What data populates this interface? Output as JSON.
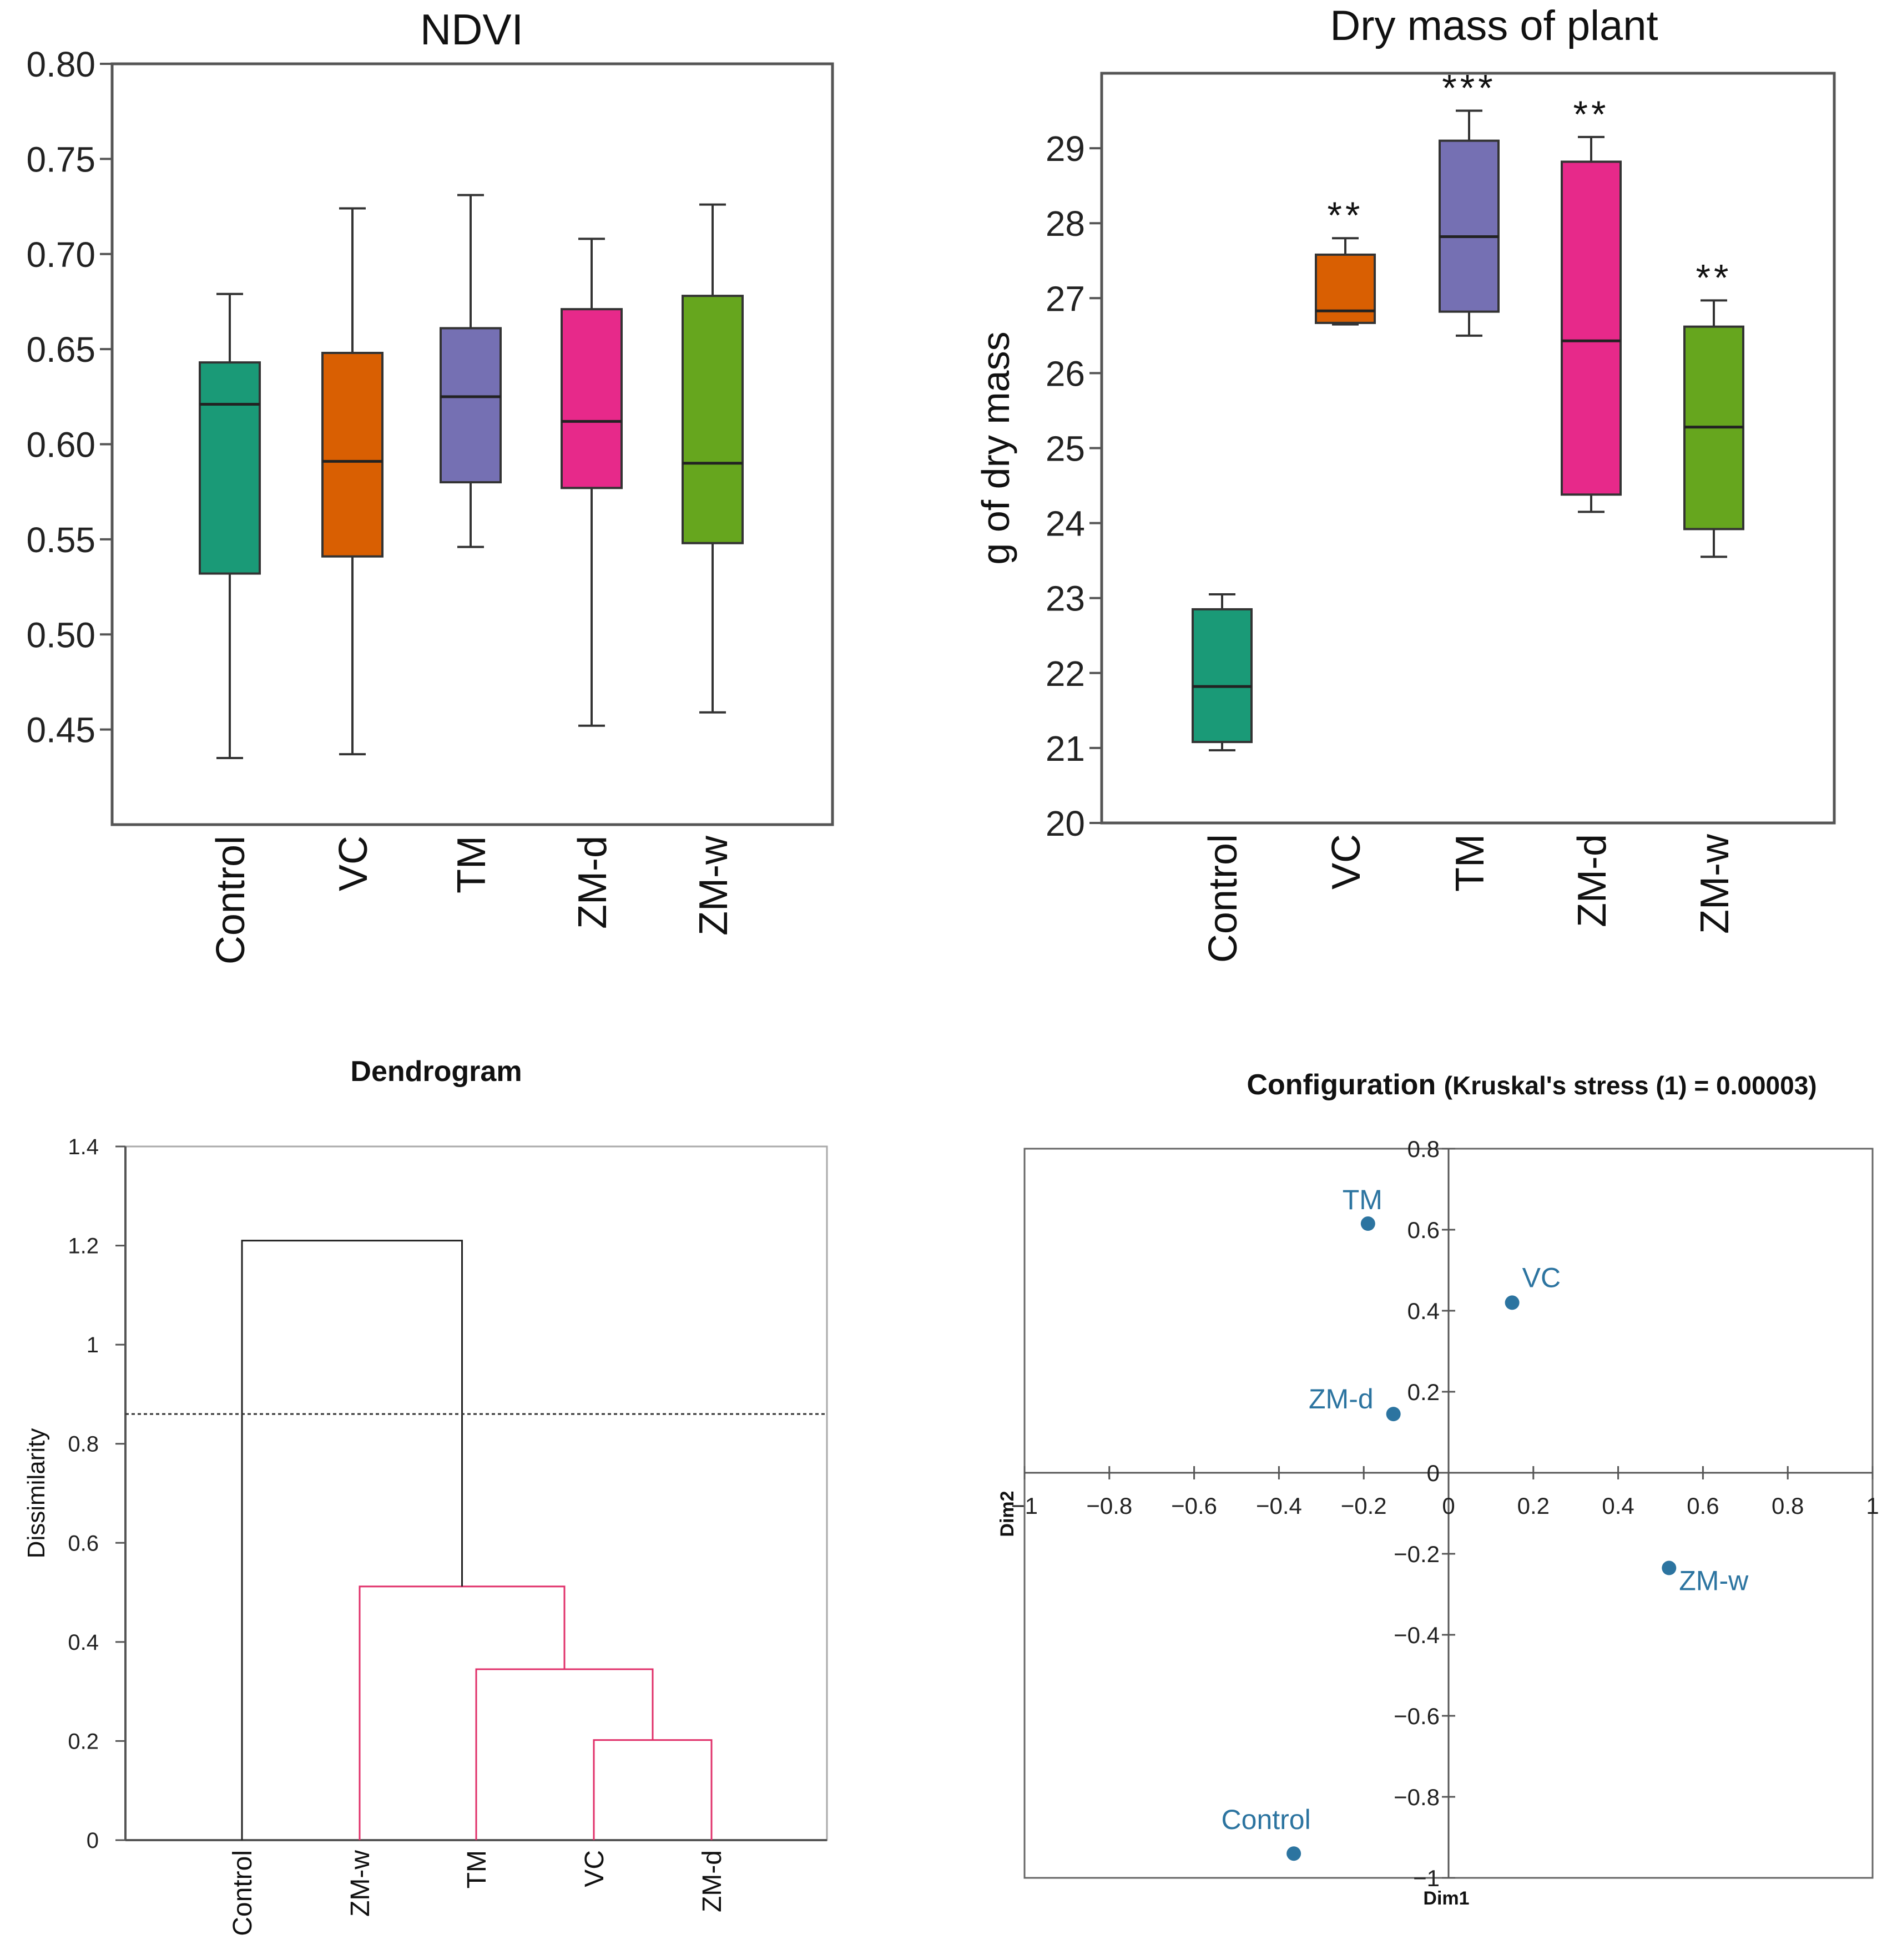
{
  "chart_data": [
    {
      "id": "ndvi",
      "type": "boxplot",
      "title": "NDVI",
      "xlabel": "",
      "ylabel": "",
      "ylim": [
        0.4,
        0.8
      ],
      "yticks": [
        0.45,
        0.5,
        0.55,
        0.6,
        0.65,
        0.7,
        0.75,
        0.8
      ],
      "ytick_labels": [
        "0.45",
        "0.50",
        "0.55",
        "0.60",
        "0.65",
        "0.70",
        "0.75",
        "0.80"
      ],
      "categories": [
        "Control",
        "VC",
        "TM",
        "ZM-d",
        "ZM-w"
      ],
      "colors": [
        "#1a9a77",
        "#d95f02",
        "#7570b3",
        "#e7298a",
        "#66a61e"
      ],
      "boxes": [
        {
          "name": "Control",
          "min": 0.435,
          "q1": 0.532,
          "median": 0.621,
          "q3": 0.643,
          "max": 0.679
        },
        {
          "name": "VC",
          "min": 0.437,
          "q1": 0.541,
          "median": 0.591,
          "q3": 0.648,
          "max": 0.724
        },
        {
          "name": "TM",
          "min": 0.546,
          "q1": 0.58,
          "median": 0.625,
          "q3": 0.661,
          "max": 0.731
        },
        {
          "name": "ZM-d",
          "min": 0.452,
          "q1": 0.577,
          "median": 0.612,
          "q3": 0.671,
          "max": 0.708
        },
        {
          "name": "ZM-w",
          "min": 0.459,
          "q1": 0.548,
          "median": 0.59,
          "q3": 0.678,
          "max": 0.726
        }
      ],
      "grid": false
    },
    {
      "id": "drymass",
      "type": "boxplot",
      "title": "Dry mass of plant",
      "xlabel": "",
      "ylabel": "g of dry mass",
      "ylim": [
        20,
        30
      ],
      "yticks": [
        20,
        21,
        22,
        23,
        24,
        25,
        26,
        27,
        28,
        29
      ],
      "ytick_labels": [
        "20",
        "21",
        "22",
        "23",
        "24",
        "25",
        "26",
        "27",
        "28",
        "29"
      ],
      "categories": [
        "Control",
        "VC",
        "TM",
        "ZM-d",
        "ZM-w"
      ],
      "colors": [
        "#1a9a77",
        "#d95f02",
        "#7570b3",
        "#e7298a",
        "#66a61e"
      ],
      "boxes": [
        {
          "name": "Control",
          "min": 20.97,
          "q1": 21.08,
          "median": 21.82,
          "q3": 22.85,
          "max": 23.05
        },
        {
          "name": "VC",
          "min": 26.65,
          "q1": 26.67,
          "median": 26.83,
          "q3": 27.58,
          "max": 27.8
        },
        {
          "name": "TM",
          "min": 26.5,
          "q1": 26.82,
          "median": 27.82,
          "q3": 29.1,
          "max": 29.5
        },
        {
          "name": "ZM-d",
          "min": 24.15,
          "q1": 24.38,
          "median": 26.43,
          "q3": 28.82,
          "max": 29.15
        },
        {
          "name": "ZM-w",
          "min": 23.55,
          "q1": 23.92,
          "median": 25.28,
          "q3": 26.62,
          "max": 26.97
        }
      ],
      "significance": [
        "",
        "**",
        "***",
        "**",
        "**"
      ],
      "grid": false
    },
    {
      "id": "dendrogram",
      "type": "dendrogram",
      "title": "Dendrogram",
      "xlabel": "",
      "ylabel": "Dissimilarity",
      "ylim": [
        0,
        1.4
      ],
      "yticks": [
        0,
        0.2,
        0.4,
        0.6,
        0.8,
        1,
        1.2,
        1.4
      ],
      "ytick_labels": [
        "0",
        "0.2",
        "0.4",
        "0.6",
        "0.8",
        "1",
        "1.2",
        "1.4"
      ],
      "leaves": [
        "Control",
        "ZM-w",
        "TM",
        "VC",
        "ZM-d"
      ],
      "merges": [
        {
          "left": "VC",
          "right": "ZM-d",
          "height": 0.202,
          "color": "#e0306a"
        },
        {
          "left": "TM",
          "right": "VC+ZM-d",
          "height": 0.345,
          "color": "#e0306a"
        },
        {
          "left": "ZM-w",
          "right": "TM+VC+ZM-d",
          "height": 0.512,
          "color": "#e0306a"
        },
        {
          "left": "Control",
          "right": "ZM-w+TM+VC+ZM-d",
          "height": 1.21,
          "color": "#222222"
        }
      ],
      "cut_line": 0.86,
      "grid": false
    },
    {
      "id": "mds",
      "type": "scatter",
      "title": "Configuration",
      "title_suffix": "(Kruskal's stress (1) = 0.00003)",
      "xlabel": "Dim1",
      "ylabel": "Dim2",
      "xlim": [
        -1,
        1
      ],
      "ylim": [
        -1,
        0.8
      ],
      "xticks": [
        -1,
        -0.8,
        -0.6,
        -0.4,
        -0.2,
        0,
        0.2,
        0.4,
        0.6,
        0.8,
        1
      ],
      "xtick_labels": [
        "−1",
        "−0.8",
        "−0.6",
        "−0.4",
        "−0.2",
        "0",
        "0.2",
        "0.4",
        "0.6",
        "0.8",
        "1"
      ],
      "yticks": [
        -1,
        -0.8,
        -0.6,
        -0.4,
        -0.2,
        0,
        0.2,
        0.4,
        0.6,
        0.8
      ],
      "ytick_labels": [
        "−1",
        "−0.8",
        "−0.6",
        "−0.4",
        "−0.2",
        "0",
        "0.2",
        "0.4",
        "0.6",
        "0.8"
      ],
      "points": [
        {
          "label": "TM",
          "x": -0.19,
          "y": 0.615
        },
        {
          "label": "VC",
          "x": 0.15,
          "y": 0.42
        },
        {
          "label": "ZM-d",
          "x": -0.13,
          "y": 0.145
        },
        {
          "label": "ZM-w",
          "x": 0.52,
          "y": -0.235
        },
        {
          "label": "Control",
          "x": -0.365,
          "y": -0.94
        }
      ],
      "point_color": "#2c74a0",
      "grid": false
    }
  ]
}
